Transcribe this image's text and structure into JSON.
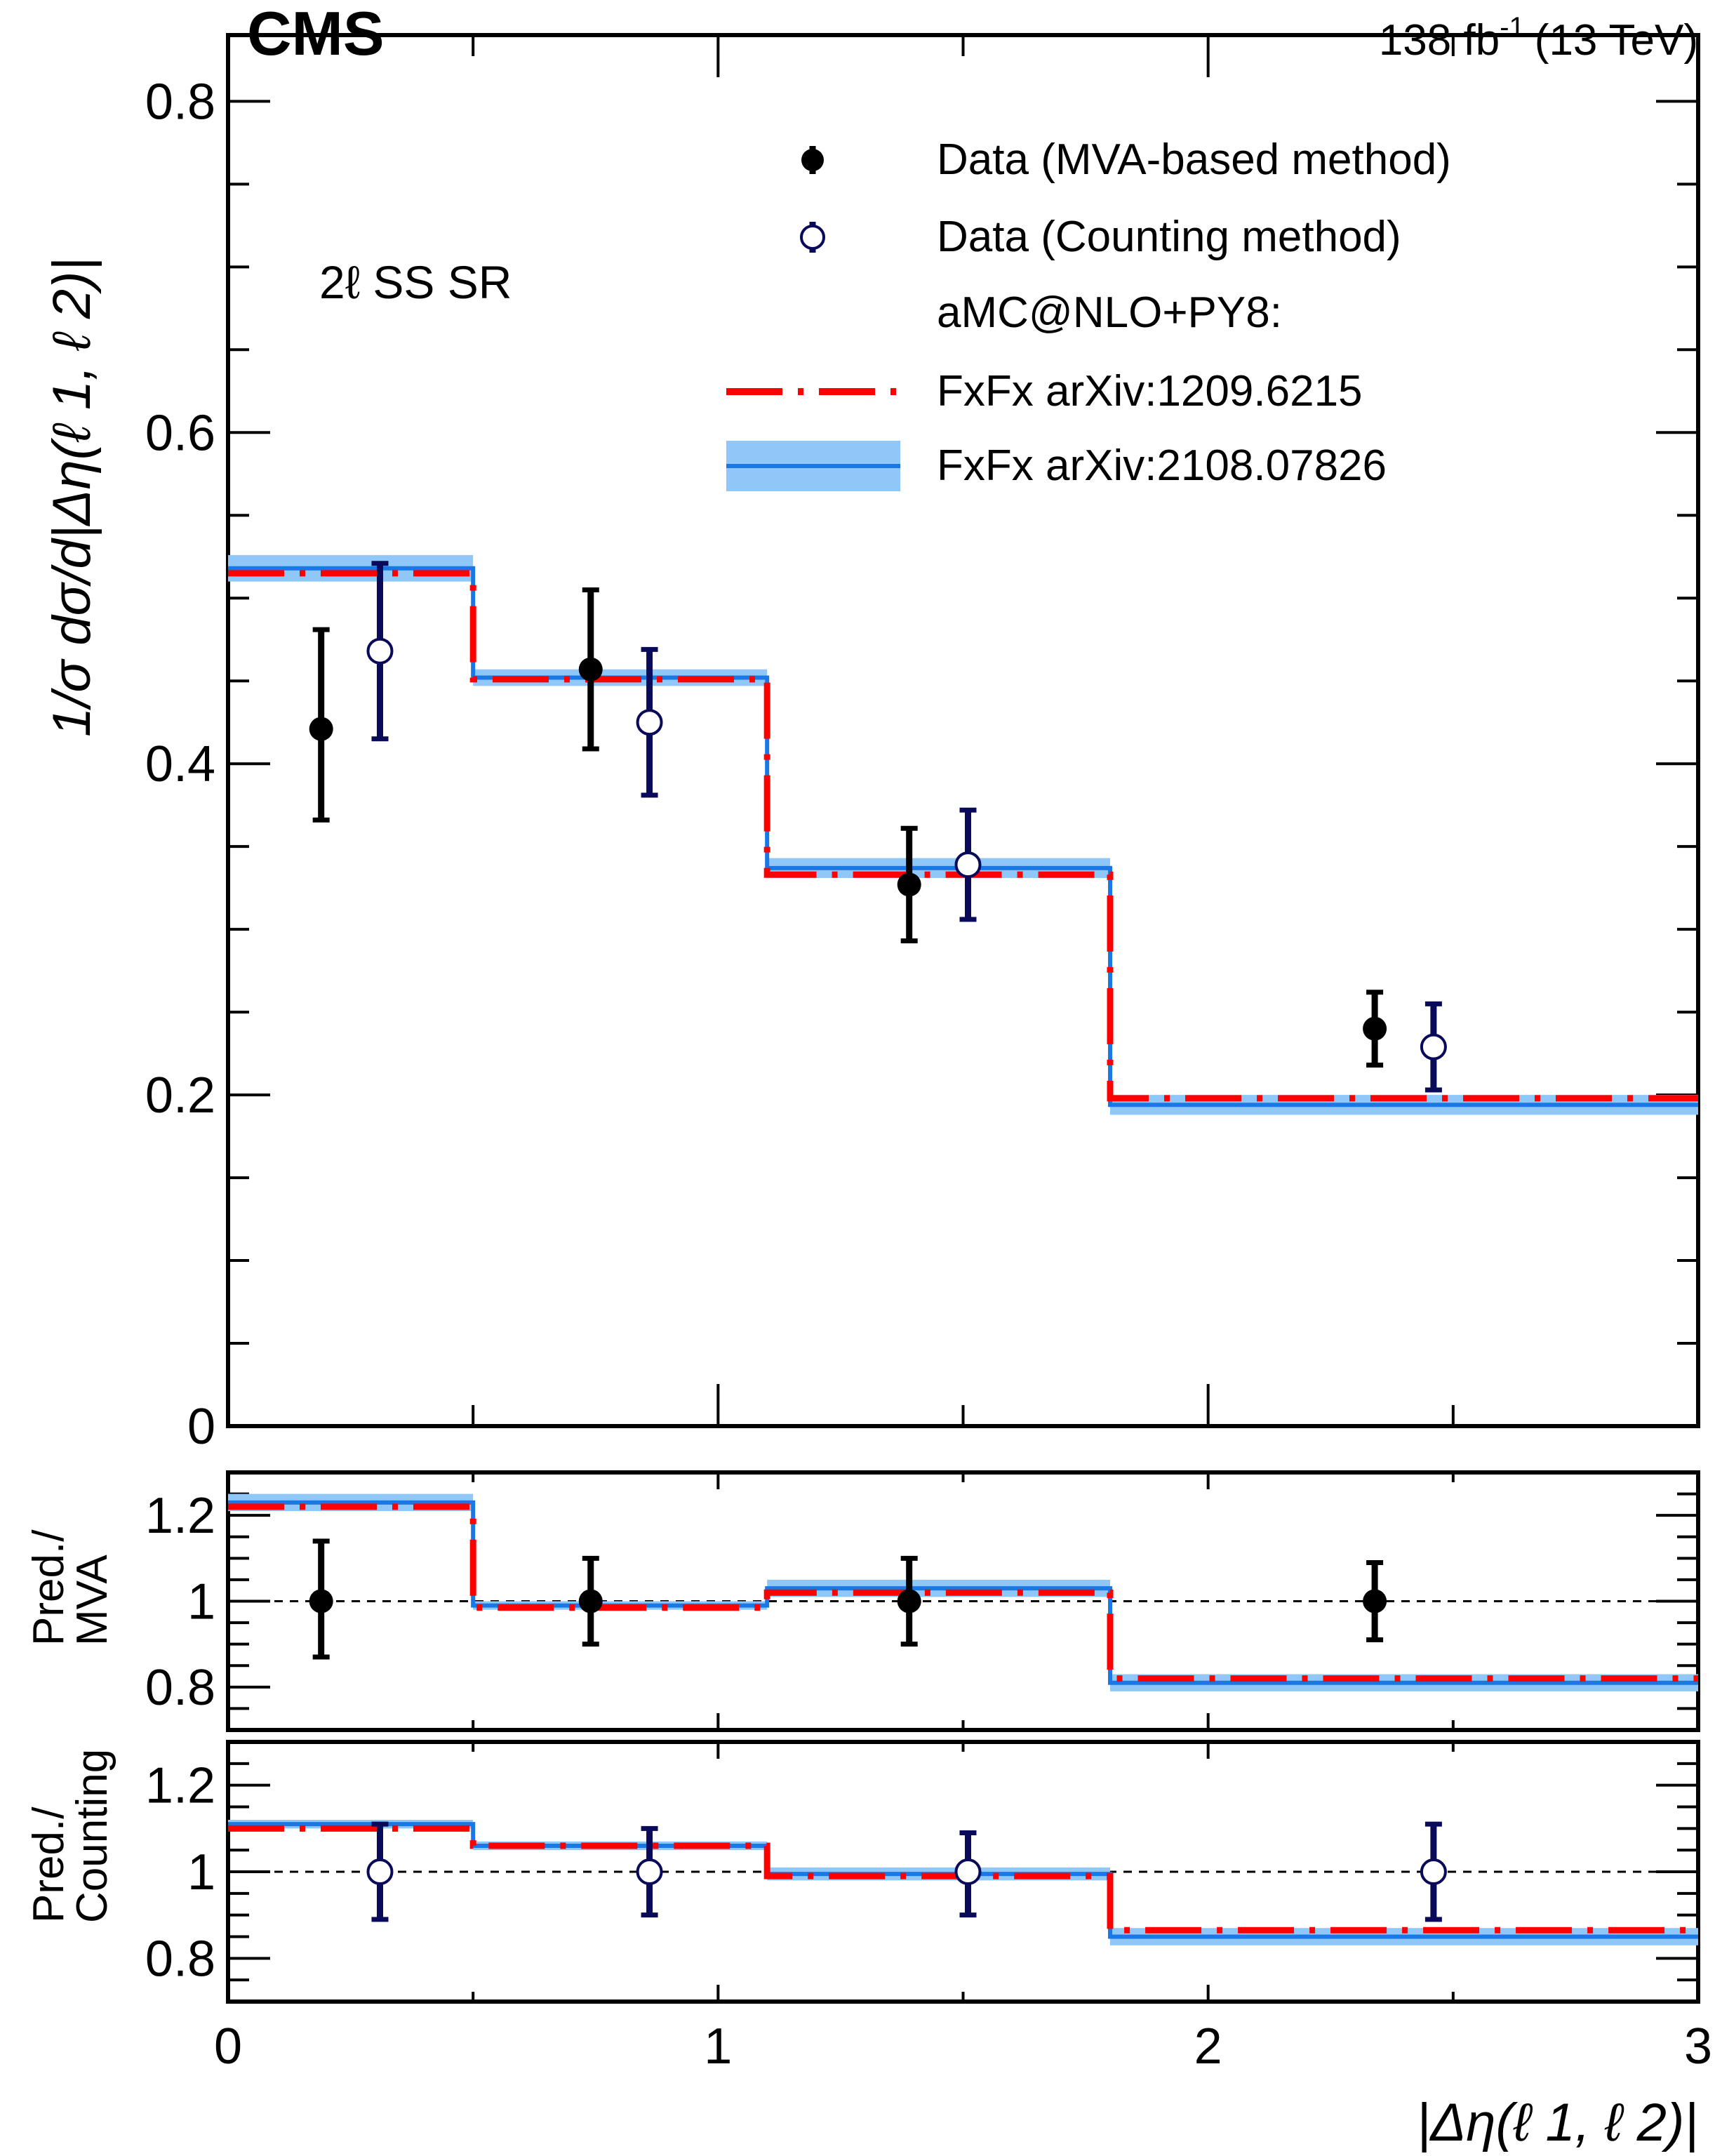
{
  "header": {
    "experiment": "CMS",
    "lumi_value": "138 fb",
    "lumi_exp": "-1",
    "energy": "(13 TeV)"
  },
  "colors": {
    "mva": "#000000",
    "counting": "#0a0a5a",
    "fxfx_old": "#ff0000",
    "fxfx_new_line": "#1a78e6",
    "fxfx_new_band": "#8fc8f8",
    "reference_line": "#000000"
  },
  "chart_data": [
    {
      "id": "main",
      "type": "line",
      "title": "",
      "region_label": "2ℓ SS SR",
      "xlabel": "|Δη(ℓ 1, ℓ 2)|",
      "ylabel": "1/σ dσ/d|Δη(ℓ 1, ℓ 2)|",
      "xlim": [
        0,
        3
      ],
      "ylim": [
        0,
        0.84
      ],
      "xticks": [
        0,
        1,
        2,
        3
      ],
      "xtick_labels": [
        "0",
        "1",
        "2",
        "3"
      ],
      "yticks": [
        0,
        0.2,
        0.4,
        0.6,
        0.8
      ],
      "ytick_labels": [
        "0",
        "0.2",
        "0.4",
        "0.6",
        "0.8"
      ],
      "bin_edges": [
        0,
        0.5,
        1.1,
        1.8,
        3.0
      ],
      "series": [
        {
          "name": "Data (MVA-based method)",
          "kind": "points",
          "marker": "filled-circle",
          "x": [
            0.19,
            0.74,
            1.39,
            2.34
          ],
          "values": [
            0.421,
            0.457,
            0.327,
            0.24
          ],
          "err_low": [
            0.055,
            0.048,
            0.034,
            0.022
          ],
          "err_high": [
            0.06,
            0.048,
            0.034,
            0.022
          ]
        },
        {
          "name": "Data (Counting method)",
          "kind": "points",
          "marker": "open-circle",
          "x": [
            0.31,
            0.86,
            1.51,
            2.46
          ],
          "values": [
            0.468,
            0.425,
            0.339,
            0.229
          ],
          "err_low": [
            0.053,
            0.044,
            0.033,
            0.026
          ],
          "err_high": [
            0.053,
            0.044,
            0.033,
            0.026
          ]
        },
        {
          "name": "FxFx arXiv:1209.6215",
          "kind": "step",
          "style": "dashed",
          "values": [
            0.515,
            0.451,
            0.333,
            0.198
          ]
        },
        {
          "name": "FxFx arXiv:2108.07826",
          "kind": "step-band",
          "style": "solid",
          "values": [
            0.518,
            0.452,
            0.337,
            0.194
          ],
          "band_low": [
            0.51,
            0.447,
            0.331,
            0.188
          ],
          "band_high": [
            0.526,
            0.457,
            0.343,
            0.2
          ]
        }
      ],
      "legend": {
        "position": "top-right",
        "entries": [
          "Data (MVA-based method)",
          "Data (Counting method)",
          "aMC@NLO+PY8:",
          "FxFx arXiv:1209.6215",
          "FxFx arXiv:2108.07826"
        ]
      }
    },
    {
      "id": "ratio_mva",
      "type": "line",
      "ylabel_lines": [
        "Pred./",
        "MVA"
      ],
      "xlim": [
        0,
        3
      ],
      "ylim": [
        0.7,
        1.3
      ],
      "yticks": [
        0.8,
        1.0,
        1.2
      ],
      "ytick_labels": [
        "0.8",
        "1",
        "1.2"
      ],
      "reference": 1.0,
      "bin_edges": [
        0,
        0.5,
        1.1,
        1.8,
        3.0
      ],
      "series": [
        {
          "name": "Data (MVA-based method)",
          "kind": "points",
          "marker": "filled-circle",
          "x": [
            0.19,
            0.74,
            1.39,
            2.34
          ],
          "values": [
            1,
            1,
            1,
            1
          ],
          "err_low": [
            0.13,
            0.1,
            0.1,
            0.09
          ],
          "err_high": [
            0.14,
            0.1,
            0.1,
            0.09
          ]
        },
        {
          "name": "FxFx arXiv:1209.6215",
          "kind": "step",
          "style": "dashed",
          "values": [
            1.22,
            0.985,
            1.02,
            0.82
          ]
        },
        {
          "name": "FxFx arXiv:2108.07826",
          "kind": "step-band",
          "style": "solid",
          "values": [
            1.23,
            0.99,
            1.03,
            0.81
          ],
          "band_low": [
            1.21,
            0.98,
            1.01,
            0.79
          ],
          "band_high": [
            1.25,
            1.0,
            1.05,
            0.83
          ]
        }
      ]
    },
    {
      "id": "ratio_counting",
      "type": "line",
      "ylabel_lines": [
        "Pred./",
        "Counting"
      ],
      "xlim": [
        0,
        3
      ],
      "ylim": [
        0.7,
        1.3
      ],
      "yticks": [
        0.8,
        1.0,
        1.2
      ],
      "ytick_labels": [
        "0.8",
        "1",
        "1.2"
      ],
      "reference": 1.0,
      "bin_edges": [
        0,
        0.5,
        1.1,
        1.8,
        3.0
      ],
      "series": [
        {
          "name": "Data (Counting method)",
          "kind": "points",
          "marker": "open-circle",
          "x": [
            0.31,
            0.86,
            1.51,
            2.46
          ],
          "values": [
            1,
            1,
            1,
            1
          ],
          "err_low": [
            0.11,
            0.1,
            0.1,
            0.11
          ],
          "err_high": [
            0.11,
            0.1,
            0.09,
            0.11
          ]
        },
        {
          "name": "FxFx arXiv:1209.6215",
          "kind": "step",
          "style": "dashed",
          "values": [
            1.1,
            1.06,
            0.99,
            0.865
          ]
        },
        {
          "name": "FxFx arXiv:2108.07826",
          "kind": "step-band",
          "style": "solid",
          "values": [
            1.11,
            1.06,
            0.995,
            0.85
          ],
          "band_low": [
            1.1,
            1.05,
            0.98,
            0.83
          ],
          "band_high": [
            1.12,
            1.07,
            1.01,
            0.87
          ]
        }
      ]
    }
  ]
}
